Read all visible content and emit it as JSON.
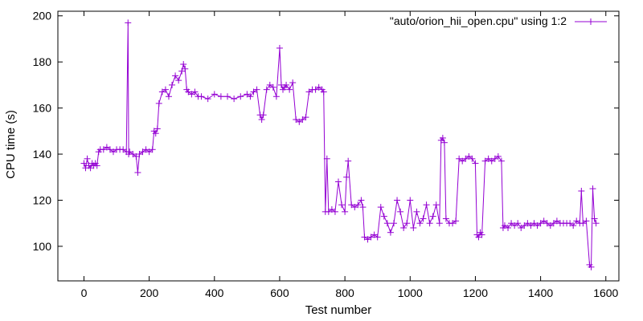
{
  "chart_data": {
    "type": "line",
    "ylabel": "CPU time (s)",
    "xlabel": "Test number",
    "xlim": [
      -80,
      1640
    ],
    "ylim": [
      85,
      202
    ],
    "xticks": [
      0,
      200,
      400,
      600,
      800,
      1000,
      1200,
      1400,
      1600
    ],
    "yticks": [
      100,
      120,
      140,
      160,
      180,
      200
    ],
    "grid": false,
    "legend_position": "top-right",
    "series": [
      {
        "name": "\"auto/orion_hii_open.cpu\" using 1:2",
        "color": "#9400d3",
        "marker": "plus",
        "x": [
          0,
          5,
          10,
          15,
          20,
          25,
          30,
          35,
          40,
          45,
          50,
          60,
          70,
          80,
          90,
          100,
          110,
          120,
          130,
          135,
          137,
          140,
          150,
          160,
          165,
          170,
          180,
          190,
          200,
          210,
          215,
          220,
          225,
          230,
          240,
          250,
          260,
          270,
          280,
          290,
          300,
          305,
          310,
          315,
          320,
          330,
          340,
          350,
          360,
          380,
          400,
          420,
          440,
          460,
          480,
          500,
          510,
          520,
          530,
          540,
          545,
          550,
          560,
          570,
          580,
          590,
          600,
          605,
          610,
          615,
          620,
          630,
          640,
          650,
          660,
          670,
          680,
          690,
          700,
          710,
          720,
          730,
          735,
          740,
          745,
          750,
          760,
          770,
          780,
          790,
          800,
          805,
          810,
          820,
          830,
          840,
          850,
          855,
          860,
          870,
          880,
          890,
          900,
          910,
          920,
          930,
          940,
          950,
          960,
          970,
          980,
          990,
          1000,
          1010,
          1020,
          1030,
          1040,
          1050,
          1060,
          1070,
          1080,
          1090,
          1095,
          1100,
          1105,
          1110,
          1120,
          1130,
          1140,
          1150,
          1160,
          1170,
          1180,
          1190,
          1200,
          1205,
          1210,
          1215,
          1220,
          1230,
          1240,
          1250,
          1260,
          1270,
          1280,
          1285,
          1290,
          1300,
          1310,
          1320,
          1330,
          1340,
          1350,
          1360,
          1370,
          1380,
          1390,
          1400,
          1410,
          1420,
          1430,
          1440,
          1450,
          1460,
          1470,
          1480,
          1490,
          1500,
          1510,
          1520,
          1525,
          1530,
          1540,
          1550,
          1555,
          1560,
          1565,
          1570
        ],
        "y": [
          136,
          134,
          138,
          135,
          134,
          136,
          135,
          136,
          135,
          141,
          142,
          142,
          143,
          142,
          141,
          142,
          142,
          142,
          141,
          197,
          140,
          141,
          140,
          139,
          132,
          140,
          141,
          142,
          141,
          142,
          150,
          149,
          151,
          162,
          167,
          168,
          165,
          170,
          174,
          172,
          176,
          179,
          177,
          168,
          167,
          166,
          167,
          165,
          165,
          164,
          166,
          165,
          165,
          164,
          165,
          166,
          165,
          167,
          168,
          157,
          155,
          157,
          168,
          170,
          169,
          165,
          186,
          170,
          168,
          169,
          170,
          168,
          171,
          155,
          154,
          155,
          156,
          167,
          168,
          168,
          169,
          168,
          167,
          115,
          138,
          115,
          116,
          115,
          128,
          118,
          115,
          130,
          137,
          118,
          117,
          118,
          120,
          117,
          104,
          103,
          104,
          105,
          104,
          117,
          113,
          110,
          106,
          110,
          120,
          115,
          108,
          110,
          120,
          108,
          115,
          110,
          112,
          118,
          110,
          113,
          118,
          110,
          146,
          147,
          145,
          112,
          110,
          110,
          111,
          138,
          137,
          138,
          139,
          138,
          136,
          105,
          104,
          106,
          105,
          137,
          138,
          137,
          138,
          139,
          137,
          108,
          109,
          108,
          110,
          109,
          110,
          108,
          109,
          110,
          109,
          110,
          109,
          110,
          111,
          110,
          109,
          110,
          111,
          110,
          110,
          110,
          110,
          109,
          111,
          110,
          124,
          110,
          111,
          92,
          91,
          125,
          112,
          110
        ]
      }
    ]
  }
}
